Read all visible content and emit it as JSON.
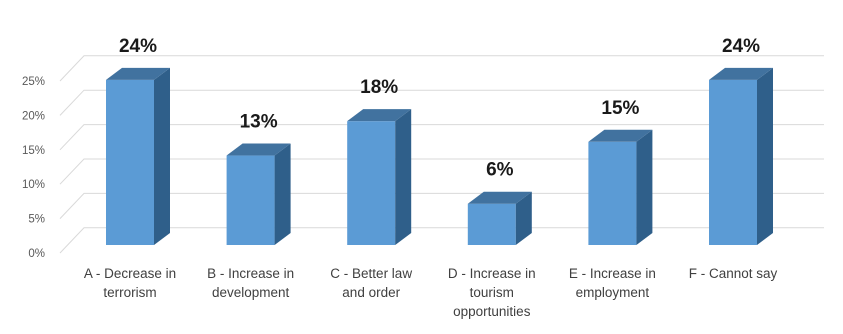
{
  "chart_data": {
    "type": "bar",
    "style": "3d-column",
    "categories": [
      [
        "A - Decrease in",
        "terrorism"
      ],
      [
        "B - Increase in",
        "development"
      ],
      [
        "C - Better law",
        "and order"
      ],
      [
        "D - Increase in",
        "tourism",
        "opportunities"
      ],
      [
        "E - Increase in",
        "employment"
      ],
      [
        "F - Cannot say"
      ]
    ],
    "values": [
      24,
      13,
      18,
      6,
      15,
      24
    ],
    "data_labels": [
      "24%",
      "13%",
      "18%",
      "6%",
      "15%",
      "24%"
    ],
    "y_ticks": [
      "0%",
      "5%",
      "10%",
      "15%",
      "20%",
      "25%"
    ],
    "ylim": [
      0,
      25
    ],
    "title": "",
    "xlabel": "",
    "ylabel": "",
    "grid": true,
    "legend": "none",
    "colors": {
      "front": "#5b9bd5",
      "side": "#2f5f8a",
      "top": "#41729f",
      "grid": "#d9d9d9"
    }
  }
}
